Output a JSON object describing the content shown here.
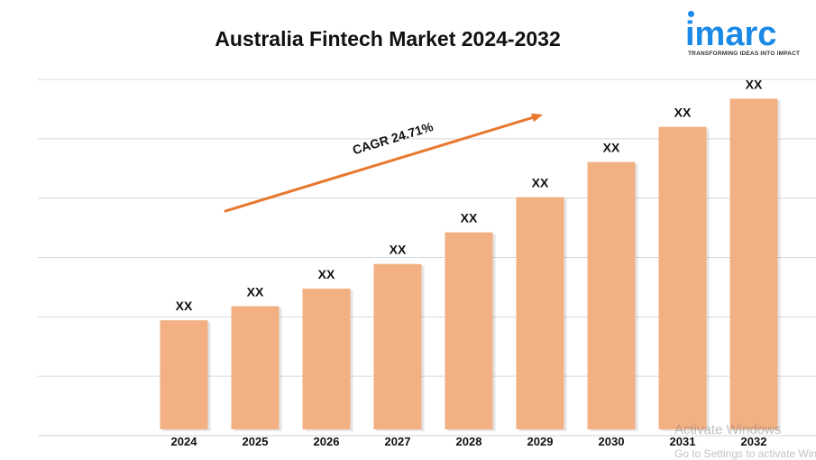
{
  "chart_data": {
    "type": "bar",
    "title": "Australia Fintech Market 2024-2032",
    "categories": [
      "2024",
      "2025",
      "2026",
      "2027",
      "2028",
      "2029",
      "2030",
      "2031",
      "2032"
    ],
    "bar_levels": [
      0.31,
      0.35,
      0.4,
      0.47,
      0.56,
      0.66,
      0.76,
      0.86,
      0.94
    ],
    "data_labels": [
      "XX",
      "XX",
      "XX",
      "XX",
      "XX",
      "XX",
      "XX",
      "XX",
      "XX"
    ],
    "annotation": "CAGR 24.71%",
    "grid": true,
    "bar_color": "#f2b083",
    "arrow_color": "#e8782e",
    "gridline_color": "#d9d9d9"
  },
  "logo": {
    "word": "imarc",
    "tagline": "TRANSFORMING IDEAS INTO IMPACT",
    "color": "#1a8ae6"
  },
  "watermark": {
    "line1": "Activate Windows",
    "line2": "Go to Settings to activate Windows."
  }
}
